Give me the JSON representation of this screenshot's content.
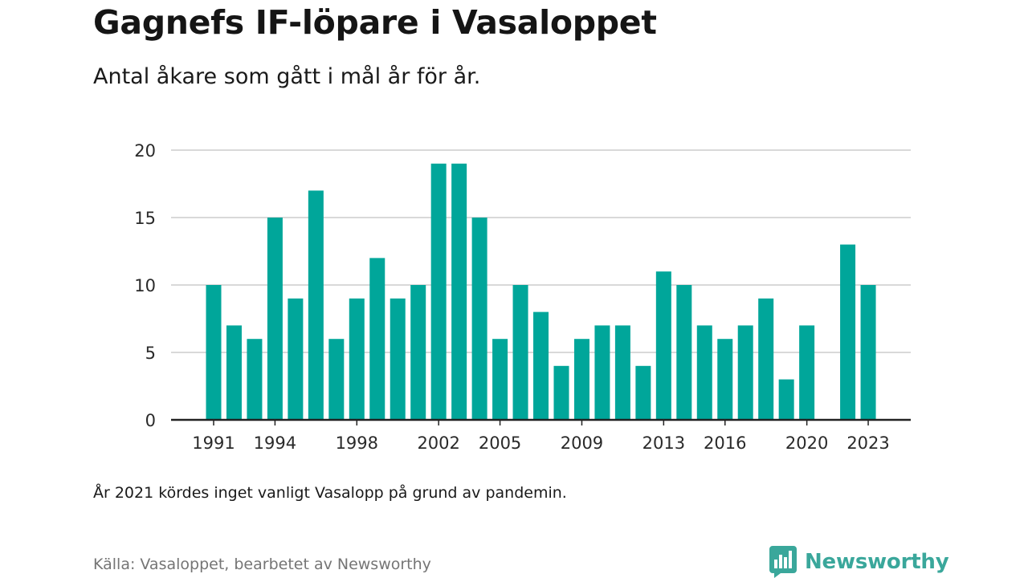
{
  "header": {
    "title": "Gagnefs IF-löpare i Vasaloppet",
    "subtitle": "Antal åkare som gått i mål år för år."
  },
  "footer": {
    "note": "År 2021 kördes inget vanligt Vasalopp på grund av pandemin.",
    "source": "Källa: Vasaloppet, bearbetet av Newsworthy",
    "brand": "Newsworthy",
    "brand_icon": "newsworthy-logo-icon"
  },
  "colors": {
    "bar": "#00a69a",
    "grid": "#d9d9d9",
    "axis": "#222222",
    "brand": "#3aa79b"
  },
  "chart_data": {
    "type": "bar",
    "categories": [
      "1991",
      "1992",
      "1993",
      "1994",
      "1995",
      "1996",
      "1997",
      "1998",
      "1999",
      "2000",
      "2001",
      "2002",
      "2003",
      "2004",
      "2005",
      "2006",
      "2007",
      "2008",
      "2009",
      "2010",
      "2011",
      "2012",
      "2013",
      "2014",
      "2015",
      "2016",
      "2017",
      "2018",
      "2019",
      "2020",
      "2021",
      "2022",
      "2023"
    ],
    "values": [
      10,
      7,
      6,
      15,
      9,
      17,
      6,
      9,
      12,
      9,
      10,
      19,
      19,
      15,
      6,
      10,
      8,
      4,
      6,
      7,
      7,
      4,
      11,
      10,
      7,
      6,
      7,
      9,
      3,
      7,
      null,
      13,
      10
    ],
    "x_tick_labels": [
      "1991",
      "1994",
      "1998",
      "2002",
      "2005",
      "2009",
      "2013",
      "2016",
      "2020",
      "2023"
    ],
    "y_ticks": [
      0,
      5,
      10,
      15,
      20
    ],
    "ylim": [
      0,
      20
    ],
    "grid": true,
    "legend": "none",
    "xlabel": "",
    "ylabel": ""
  }
}
